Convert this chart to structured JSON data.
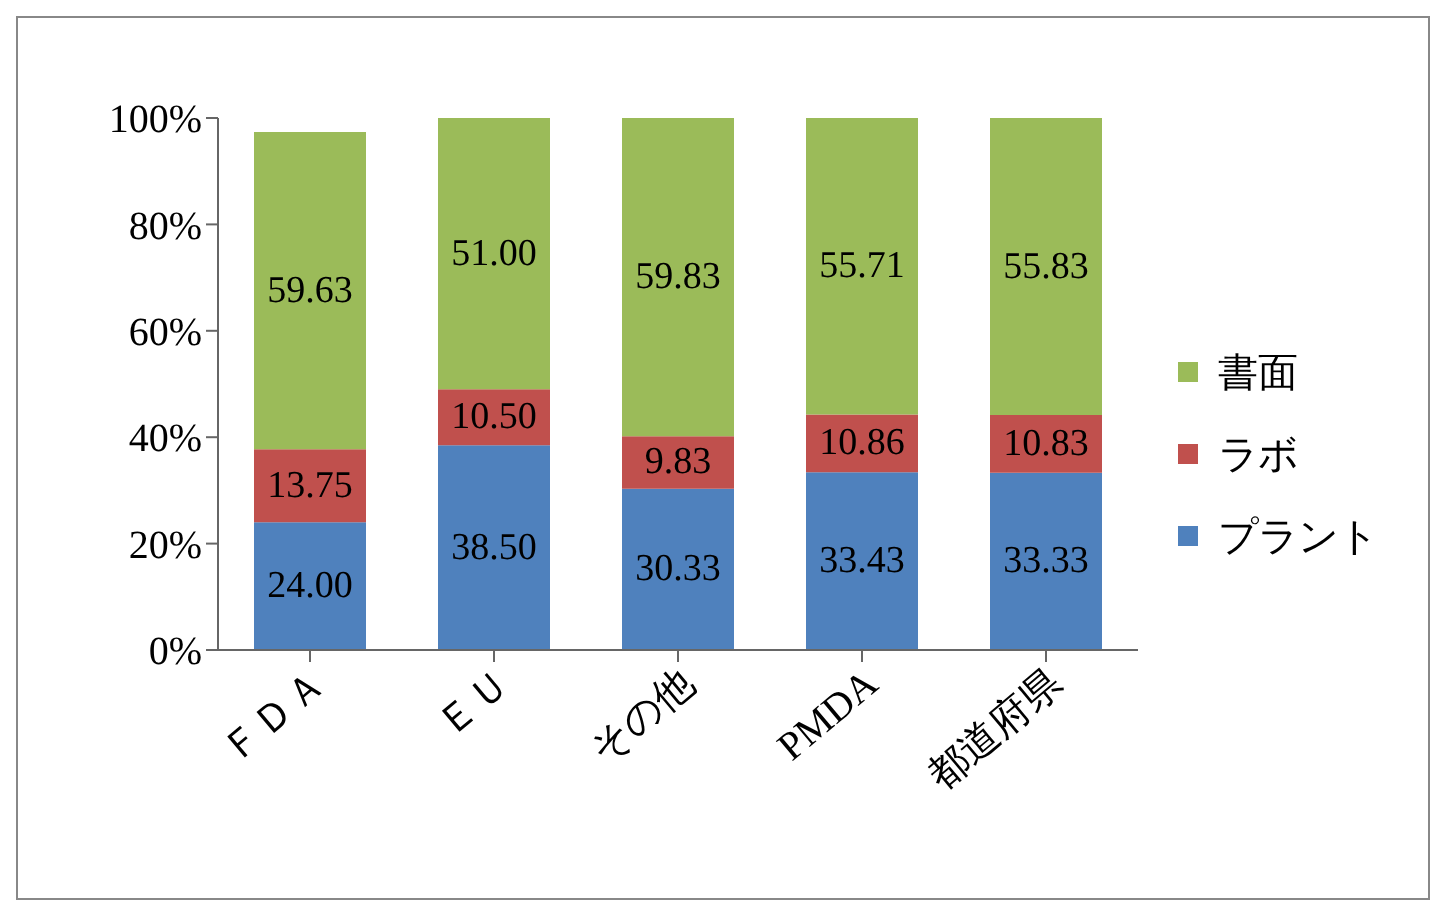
{
  "chart_data": {
    "type": "bar",
    "stacked": true,
    "categories": [
      "ＦＤＡ",
      "ＥＵ",
      "その他",
      "PMDA",
      "都道府県"
    ],
    "series": [
      {
        "name": "プラント",
        "color": "#4f81bd",
        "values": [
          24.0,
          38.5,
          30.33,
          33.43,
          33.33
        ],
        "value_labels": [
          "24.00",
          "38.50",
          "30.33",
          "33.43",
          "33.33"
        ]
      },
      {
        "name": "ラボ",
        "color": "#c0504d",
        "values": [
          13.75,
          10.5,
          9.83,
          10.86,
          10.83
        ],
        "value_labels": [
          "13.75",
          "10.50",
          "9.83",
          "10.86",
          "10.83"
        ]
      },
      {
        "name": "書面",
        "color": "#9bbb59",
        "values": [
          59.63,
          51.0,
          59.83,
          55.71,
          55.83
        ],
        "value_labels": [
          "59.63",
          "51.00",
          "59.83",
          "55.71",
          "55.83"
        ]
      }
    ],
    "ylim": [
      0,
      100
    ],
    "yticks": [
      {
        "value": 0,
        "label": "0%"
      },
      {
        "value": 20,
        "label": "20%"
      },
      {
        "value": 40,
        "label": "40%"
      },
      {
        "value": 60,
        "label": "60%"
      },
      {
        "value": 80,
        "label": "80%"
      },
      {
        "value": 100,
        "label": "100%"
      }
    ],
    "grid": false,
    "legend": "right"
  }
}
